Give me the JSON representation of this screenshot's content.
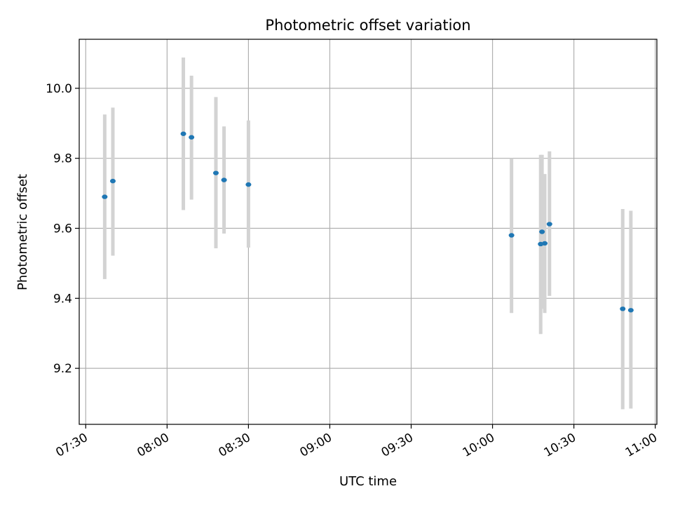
{
  "chart_data": {
    "type": "scatter",
    "title": "Photometric offset variation",
    "xlabel": "UTC time",
    "ylabel": "Photometric offset",
    "x_tick_labels": [
      "07:30",
      "08:00",
      "08:30",
      "09:00",
      "09:30",
      "10:00",
      "10:30",
      "11:00"
    ],
    "x_tick_minutes": [
      450,
      480,
      510,
      540,
      570,
      600,
      630,
      660
    ],
    "xlim_minutes": [
      447.6,
      660.6
    ],
    "y_ticks": [
      9.2,
      9.4,
      9.6,
      9.8,
      10.0
    ],
    "y_tick_labels": [
      "9.2",
      "9.4",
      "9.6",
      "9.8",
      "10.0"
    ],
    "ylim": [
      9.04,
      10.14
    ],
    "grid": true,
    "point_color": "#1f77b4",
    "errorbar_color": "#d3d3d3",
    "points": [
      {
        "t": "07:37",
        "y": 9.69,
        "lo": 9.455,
        "hi": 9.925
      },
      {
        "t": "07:40",
        "y": 9.735,
        "lo": 9.522,
        "hi": 9.945
      },
      {
        "t": "08:06",
        "y": 9.87,
        "lo": 9.652,
        "hi": 10.088
      },
      {
        "t": "08:09",
        "y": 9.86,
        "lo": 9.682,
        "hi": 10.036
      },
      {
        "t": "08:18",
        "y": 9.758,
        "lo": 9.543,
        "hi": 9.975
      },
      {
        "t": "08:21",
        "y": 9.738,
        "lo": 9.585,
        "hi": 9.891
      },
      {
        "t": "08:30",
        "y": 9.725,
        "lo": 9.545,
        "hi": 9.908
      },
      {
        "t": "10:07",
        "y": 9.58,
        "lo": 9.358,
        "hi": 9.8
      },
      {
        "t": "10:17:45",
        "y": 9.555,
        "lo": 9.298,
        "hi": 9.81
      },
      {
        "t": "10:18:15",
        "y": 9.59,
        "lo": 9.37,
        "hi": 9.81
      },
      {
        "t": "10:19:15",
        "y": 9.557,
        "lo": 9.358,
        "hi": 9.755
      },
      {
        "t": "10:21",
        "y": 9.612,
        "lo": 9.407,
        "hi": 9.82
      },
      {
        "t": "10:48",
        "y": 9.37,
        "lo": 9.083,
        "hi": 9.655
      },
      {
        "t": "10:51",
        "y": 9.366,
        "lo": 9.085,
        "hi": 9.65
      }
    ]
  }
}
